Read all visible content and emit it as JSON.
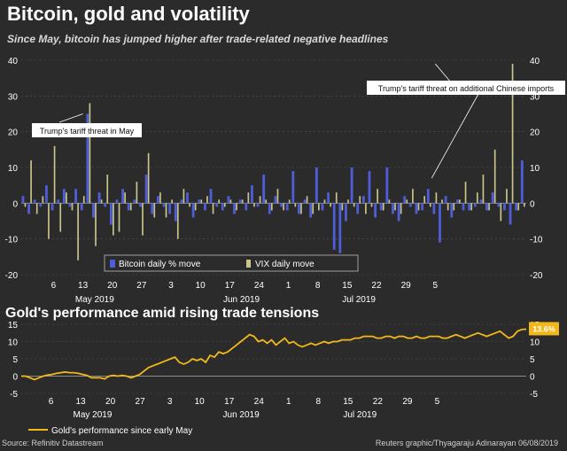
{
  "title": "Bitcoin, gold and volatility",
  "subtitle": "Since May, bitcoin has jumped higher after trade-related negative headlines",
  "title2": "Gold's performance amid rising trade tensions",
  "source": "Source: Refinitiv Datastream",
  "credit": "Reuters graphic/Thyagaraju Adinarayan 06/08/2019",
  "colors": {
    "background": "#2b2b2b",
    "bitcoin": "#4e5ed8",
    "vix": "#c9c68a",
    "gold": "#f2b81a",
    "grid": "#555555",
    "annotation_box": "#ffffff"
  },
  "chart_data": [
    {
      "type": "bar",
      "title": "Bitcoin daily % move vs VIX daily move",
      "series": [
        {
          "name": "Bitcoin daily % move",
          "values": [
            2,
            -3,
            1,
            -1,
            5,
            -2,
            1,
            4,
            -1,
            4,
            -2,
            25,
            -4,
            3,
            -1,
            -6,
            1,
            4,
            -2,
            1,
            -1,
            8,
            -3,
            2,
            -1,
            -3,
            -5,
            1,
            3,
            -4,
            1,
            -2,
            4,
            -1,
            -2,
            2,
            -3,
            1,
            -2,
            5,
            -1,
            8,
            -3,
            2,
            -1,
            -2,
            9,
            -3,
            1,
            -4,
            10,
            -2,
            3,
            -13,
            -14,
            -5,
            10,
            -3,
            2,
            9,
            -4,
            -2,
            10,
            -3,
            -5,
            2,
            -1,
            -3,
            -2,
            4,
            -3,
            -11,
            2,
            -4,
            1,
            -2,
            -2,
            -1,
            1,
            -2,
            3,
            -1,
            -2,
            -6,
            -2,
            12
          ]
        },
        {
          "name": "VIX daily move",
          "values": [
            -1,
            12,
            -3,
            2,
            -10,
            16,
            -8,
            3,
            -2,
            -16,
            2,
            28,
            -12,
            1,
            8,
            -9,
            -8,
            3,
            -2,
            6,
            -9,
            14,
            -4,
            3,
            -4,
            1,
            -10,
            4,
            -1,
            -2,
            1,
            2,
            -3,
            1,
            -1,
            1,
            -2,
            1,
            3,
            -1,
            2,
            1,
            -2,
            4,
            -2,
            1,
            -1,
            -3,
            2,
            -3,
            -2,
            1,
            -1,
            3,
            -2,
            1,
            -1,
            2,
            -3,
            -1,
            4,
            -2,
            1,
            -2,
            -3,
            1,
            4,
            -2,
            2,
            -1,
            3,
            1,
            -2,
            -2,
            1,
            6,
            -2,
            3,
            8,
            -2,
            15,
            -5,
            4,
            39,
            -2,
            -1
          ]
        }
      ],
      "ylim": [
        -20,
        40
      ],
      "yticks": [
        -20,
        -10,
        0,
        10,
        20,
        30,
        40
      ],
      "xticks": [
        {
          "label": "6",
          "index": 5
        },
        {
          "label": "13",
          "index": 10
        },
        {
          "label": "20",
          "index": 15
        },
        {
          "label": "27",
          "index": 20
        },
        {
          "label": "3",
          "index": 25
        },
        {
          "label": "10",
          "index": 30
        },
        {
          "label": "17",
          "index": 35
        },
        {
          "label": "24",
          "index": 40
        },
        {
          "label": "1",
          "index": 45
        },
        {
          "label": "8",
          "index": 50
        },
        {
          "label": "15",
          "index": 55
        },
        {
          "label": "22",
          "index": 60
        },
        {
          "label": "29",
          "index": 65
        },
        {
          "label": "5",
          "index": 70
        }
      ],
      "months": [
        {
          "label": "May 2019",
          "index": 12
        },
        {
          "label": "Jun 2019",
          "index": 37
        },
        {
          "label": "Jul 2019",
          "index": 57
        }
      ],
      "legend": [
        "Bitcoin daily % move",
        "VIX daily move"
      ],
      "annotations": [
        {
          "text": "Trump's tariff threat in May",
          "x_index": 10,
          "y": 25
        },
        {
          "text": "Trump's tariff threat on additional Chinese imports",
          "x_index": 70,
          "y": 39
        }
      ]
    },
    {
      "type": "line",
      "title": "Gold's performance amid rising trade tensions",
      "series": [
        {
          "name": "Gold's performance since early May",
          "values": [
            0,
            0,
            -0.5,
            -1,
            -0.5,
            0,
            0.3,
            0.5,
            0.8,
            1,
            1.2,
            1,
            1,
            0.8,
            0.5,
            0.2,
            -0.5,
            -0.5,
            -0.5,
            -0.8,
            0,
            0.2,
            0,
            0.2,
            0,
            -0.5,
            0,
            0.5,
            1.5,
            2.5,
            3,
            3.5,
            4,
            4.5,
            5,
            5.5,
            4,
            3.5,
            4,
            5,
            4.5,
            5,
            4,
            6,
            5.5,
            7,
            6.5,
            7,
            8,
            9,
            10,
            11,
            12,
            11.5,
            10,
            10.5,
            9.5,
            10.5,
            9,
            10,
            11,
            9.5,
            10,
            9,
            8.5,
            9,
            9.5,
            9,
            9.5,
            10,
            9.5,
            10,
            10,
            10.5,
            10.5,
            10.5,
            11,
            11,
            11.5,
            11.5,
            11.5,
            11,
            11,
            11.5,
            11.5,
            11,
            11.5,
            11.5,
            11,
            11,
            11.5,
            11,
            11,
            11.5,
            11.5,
            11.5,
            11,
            11,
            11.5,
            12,
            11.5,
            11,
            11.5,
            12,
            12.5,
            12,
            11.5,
            12,
            12.5,
            13,
            12,
            11,
            11.5,
            13,
            13.5,
            13.6
          ]
        }
      ],
      "ylim": [
        -5,
        15
      ],
      "yticks": [
        -5,
        0,
        5,
        10,
        15
      ],
      "end_label": "13.6%",
      "legend": [
        "Gold's performance since early May"
      ]
    }
  ]
}
